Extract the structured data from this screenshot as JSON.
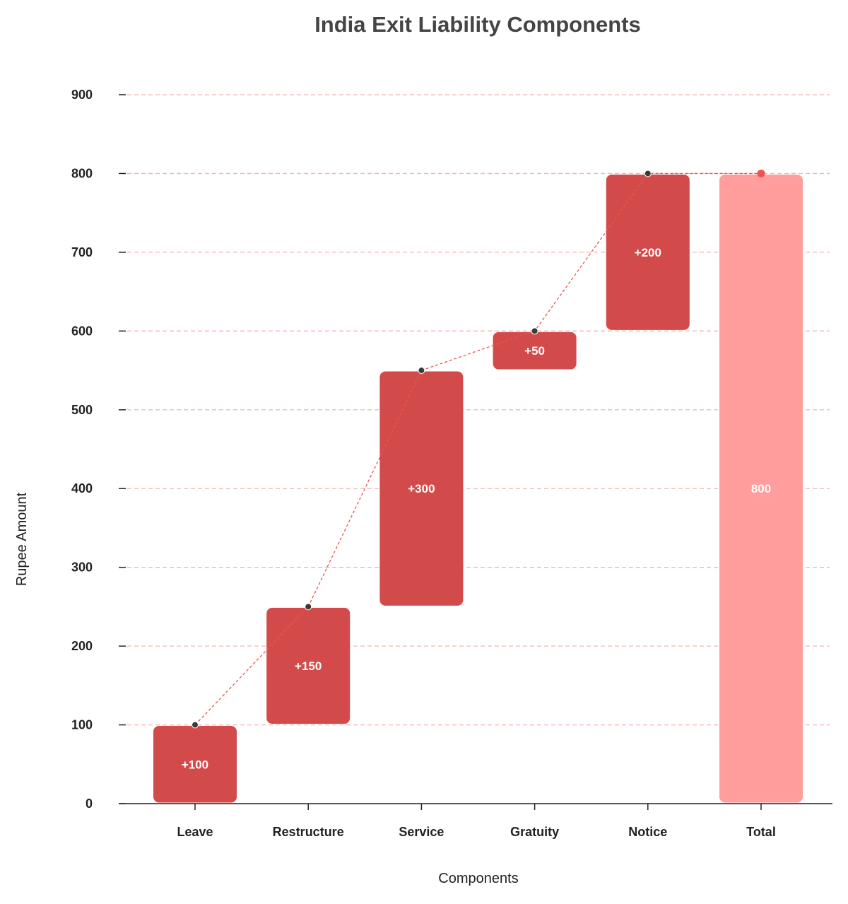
{
  "chart_data": {
    "type": "bar",
    "subtype": "waterfall",
    "title": "India Exit Liability Components",
    "xlabel": "Components",
    "ylabel": "Rupee Amount",
    "categories": [
      "Leave",
      "Restructure",
      "Service",
      "Gratuity",
      "Notice",
      "Total"
    ],
    "values": [
      100,
      150,
      300,
      50,
      200,
      800
    ],
    "bar_labels": [
      "+100",
      "+150",
      "+300",
      "+50",
      "+200",
      "800"
    ],
    "is_total": [
      false,
      false,
      false,
      false,
      false,
      true
    ],
    "ylim": [
      0,
      900
    ],
    "yticks": [
      0,
      100,
      200,
      300,
      400,
      500,
      600,
      700,
      800,
      900
    ],
    "grid": true,
    "colors": {
      "increase": "#d34a4a",
      "total": "#ff9e9c",
      "connector": "#ef5350",
      "grid": "#f4b4b4",
      "marker": "#3a3a3a"
    }
  }
}
